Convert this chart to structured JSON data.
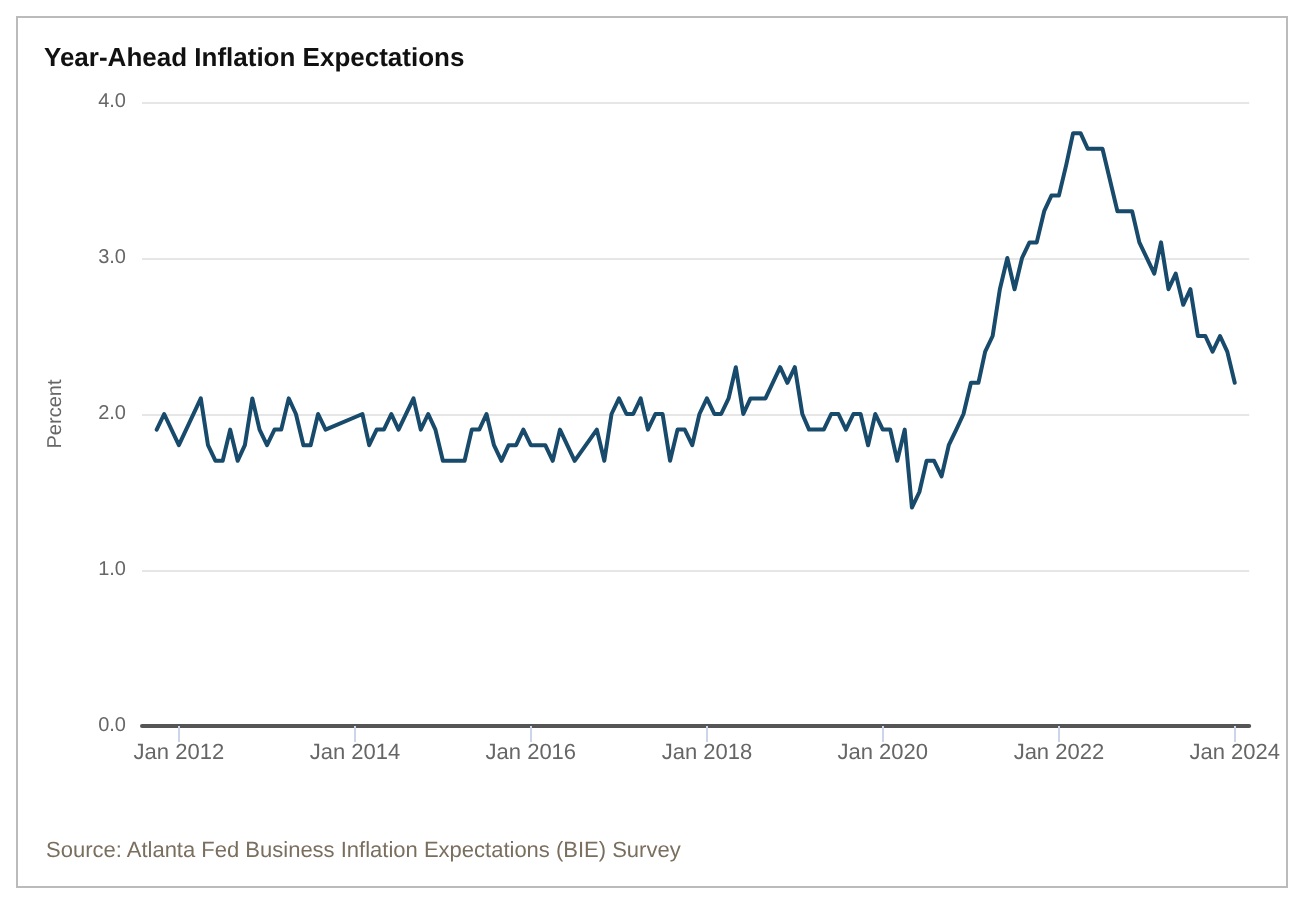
{
  "chart_data": {
    "type": "line",
    "title": "Year-Ahead Inflation Expectations",
    "ylabel": "Percent",
    "annotations": [
      "Source: Atlanta Fed Business Inflation Expectations (BIE) Survey"
    ],
    "x": [
      "2011-10",
      "2011-11",
      "2012-01",
      "2012-04",
      "2012-05",
      "2012-06",
      "2012-07",
      "2012-08",
      "2012-09",
      "2012-10",
      "2012-11",
      "2012-12",
      "2013-01",
      "2013-02",
      "2013-03",
      "2013-04",
      "2013-05",
      "2013-06",
      "2013-07",
      "2013-08",
      "2013-09",
      "2014-02",
      "2014-03",
      "2014-04",
      "2014-05",
      "2014-06",
      "2014-07",
      "2014-09",
      "2014-10",
      "2014-11",
      "2014-12",
      "2015-01",
      "2015-04",
      "2015-05",
      "2015-06",
      "2015-07",
      "2015-08",
      "2015-09",
      "2015-10",
      "2015-11",
      "2015-12",
      "2016-01",
      "2016-03",
      "2016-04",
      "2016-05",
      "2016-07",
      "2016-10",
      "2016-11",
      "2016-12",
      "2017-01",
      "2017-02",
      "2017-03",
      "2017-04",
      "2017-05",
      "2017-06",
      "2017-07",
      "2017-08",
      "2017-09",
      "2017-10",
      "2017-11",
      "2017-12",
      "2018-01",
      "2018-02",
      "2018-03",
      "2018-04",
      "2018-05",
      "2018-06",
      "2018-07",
      "2018-09",
      "2018-11",
      "2018-12",
      "2019-01",
      "2019-02",
      "2019-03",
      "2019-05",
      "2019-06",
      "2019-07",
      "2019-08",
      "2019-09",
      "2019-10",
      "2019-11",
      "2019-12",
      "2020-01",
      "2020-02",
      "2020-03",
      "2020-04",
      "2020-05",
      "2020-06",
      "2020-07",
      "2020-08",
      "2020-09",
      "2020-10",
      "2020-11",
      "2020-12",
      "2021-01",
      "2021-02",
      "2021-03",
      "2021-04",
      "2021-05",
      "2021-06",
      "2021-07",
      "2021-08",
      "2021-09",
      "2021-10",
      "2021-11",
      "2021-12",
      "2022-01",
      "2022-02",
      "2022-03",
      "2022-04",
      "2022-05",
      "2022-07",
      "2022-08",
      "2022-09",
      "2022-11",
      "2022-12",
      "2023-02",
      "2023-03",
      "2023-04",
      "2023-05",
      "2023-06",
      "2023-07",
      "2023-08",
      "2023-09",
      "2023-10",
      "2023-11",
      "2023-12",
      "2024-01"
    ],
    "series": [
      {
        "color": "#174a6b",
        "values": [
          1.9,
          2.0,
          1.8,
          2.1,
          1.8,
          1.7,
          1.7,
          1.9,
          1.7,
          1.8,
          2.1,
          1.9,
          1.8,
          1.9,
          1.9,
          2.1,
          2.0,
          1.8,
          1.8,
          2.0,
          1.9,
          2.0,
          1.8,
          1.9,
          1.9,
          2.0,
          1.9,
          2.1,
          1.9,
          2.0,
          1.9,
          1.7,
          1.7,
          1.9,
          1.9,
          2.0,
          1.8,
          1.7,
          1.8,
          1.8,
          1.9,
          1.8,
          1.8,
          1.7,
          1.9,
          1.7,
          1.9,
          1.7,
          2.0,
          2.1,
          2.0,
          2.0,
          2.1,
          1.9,
          2.0,
          2.0,
          1.7,
          1.9,
          1.9,
          1.8,
          2.0,
          2.1,
          2.0,
          2.0,
          2.1,
          2.3,
          2.0,
          2.1,
          2.1,
          2.3,
          2.2,
          2.3,
          2.0,
          1.9,
          1.9,
          2.0,
          2.0,
          1.9,
          2.0,
          2.0,
          1.8,
          2.0,
          1.9,
          1.9,
          1.7,
          1.9,
          1.4,
          1.5,
          1.7,
          1.7,
          1.6,
          1.8,
          1.9,
          2.0,
          2.2,
          2.2,
          2.4,
          2.5,
          2.8,
          3.0,
          2.8,
          3.0,
          3.1,
          3.1,
          3.3,
          3.4,
          3.4,
          3.6,
          3.8,
          3.8,
          3.7,
          3.7,
          3.5,
          3.3,
          3.3,
          3.1,
          2.9,
          3.1,
          2.8,
          2.9,
          2.7,
          2.8,
          2.5,
          2.5,
          2.4,
          2.5,
          2.4,
          2.2
        ]
      }
    ],
    "xlim": [
      "2011-08",
      "2024-03"
    ],
    "xticks": [
      {
        "value": "2012-01",
        "label": "Jan 2012"
      },
      {
        "value": "2014-01",
        "label": "Jan 2014"
      },
      {
        "value": "2016-01",
        "label": "Jan 2016"
      },
      {
        "value": "2018-01",
        "label": "Jan 2018"
      },
      {
        "value": "2020-01",
        "label": "Jan 2020"
      },
      {
        "value": "2022-01",
        "label": "Jan 2022"
      },
      {
        "value": "2024-01",
        "label": "Jan 2024"
      }
    ],
    "ylim": [
      0,
      4
    ],
    "yticks": [
      {
        "value": 0,
        "label": "0.0"
      },
      {
        "value": 1,
        "label": "1.0"
      },
      {
        "value": 2,
        "label": "2.0"
      },
      {
        "value": 3,
        "label": "3.0"
      },
      {
        "value": 4,
        "label": "4.0"
      }
    ],
    "grid": "y",
    "marker": "none",
    "line_style": "solid"
  }
}
